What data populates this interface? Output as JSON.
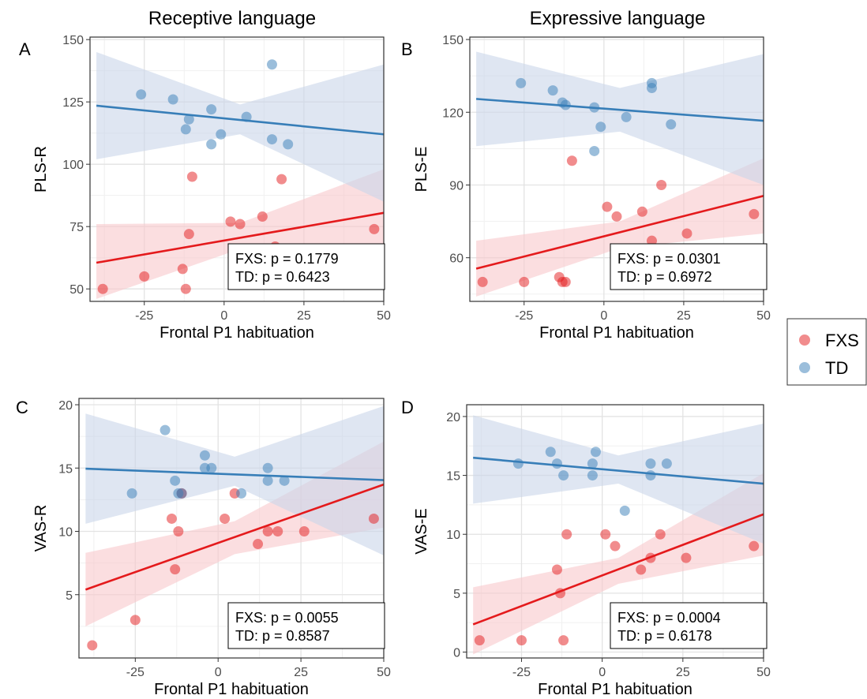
{
  "column_titles": [
    "Receptive language",
    "Expressive language"
  ],
  "legend": {
    "entries": [
      {
        "label": "FXS",
        "color": "#E41A1C"
      },
      {
        "label": "TD",
        "color": "#377EB8"
      }
    ]
  },
  "colors": {
    "FXS": "#E41A1C",
    "TD": "#377EB8",
    "FXS_band": "#F8C8CB",
    "TD_band": "#C9D6EA"
  },
  "chart_data": [
    {
      "type": "scatter",
      "panel_letter": "A",
      "column_title": "Receptive language",
      "xlabel": "Frontal P1 habituation",
      "ylabel": "PLS-R",
      "xlim": [
        -42,
        50
      ],
      "ylim": [
        45,
        151
      ],
      "xticks": [
        -25,
        0,
        25,
        50
      ],
      "xtick_labels": [
        "-25",
        "0",
        "25",
        "50"
      ],
      "yticks": [
        50,
        75,
        100,
        125,
        150
      ],
      "ytick_labels": [
        "50",
        "75",
        "100",
        "125",
        "150"
      ],
      "grid": true,
      "annotation": [
        "FXS: p = 0.1779",
        "TD:   p = 0.6423"
      ],
      "series": [
        {
          "name": "FXS",
          "points": [
            [
              -38,
              50
            ],
            [
              -25,
              55
            ],
            [
              -13,
              58
            ],
            [
              -12,
              50
            ],
            [
              -11,
              72
            ],
            [
              -10,
              95
            ],
            [
              2,
              77
            ],
            [
              5,
              76
            ],
            [
              12,
              79
            ],
            [
              16,
              67
            ],
            [
              18,
              94
            ],
            [
              47,
              74
            ]
          ],
          "fit": {
            "x": [
              -40,
              50
            ],
            "y": [
              60.5,
              80.5
            ]
          },
          "band": {
            "x": [
              -40,
              5,
              50
            ],
            "lower": [
              46,
              66,
              64
            ],
            "upper": [
              76,
              76.5,
              98
            ]
          }
        },
        {
          "name": "TD",
          "points": [
            [
              -26,
              128
            ],
            [
              -16,
              126
            ],
            [
              -12,
              114
            ],
            [
              -11,
              118
            ],
            [
              -4,
              122
            ],
            [
              -4,
              108
            ],
            [
              -1,
              112
            ],
            [
              7,
              119
            ],
            [
              15,
              140
            ],
            [
              15,
              110
            ],
            [
              20,
              108
            ]
          ],
          "fit": {
            "x": [
              -40,
              50
            ],
            "y": [
              123.5,
              112
            ]
          },
          "band": {
            "x": [
              -40,
              5,
              50
            ],
            "lower": [
              102,
              112,
              85
            ],
            "upper": [
              145,
              124,
              140
            ]
          }
        }
      ]
    },
    {
      "type": "scatter",
      "panel_letter": "B",
      "column_title": "Expressive language",
      "xlabel": "Frontal P1 habituation",
      "ylabel": "PLS-E",
      "xlim": [
        -42,
        50
      ],
      "ylim": [
        42,
        151
      ],
      "xticks": [
        -25,
        0,
        25,
        50
      ],
      "xtick_labels": [
        "-25",
        "0",
        "25",
        "50"
      ],
      "yticks": [
        60,
        90,
        120,
        150
      ],
      "ytick_labels": [
        "60",
        "90",
        "120",
        "150"
      ],
      "grid": true,
      "annotation": [
        "FXS: p = 0.0301",
        "TD:   p = 0.6972"
      ],
      "series": [
        {
          "name": "FXS",
          "points": [
            [
              -38,
              50
            ],
            [
              -25,
              50
            ],
            [
              -14,
              52
            ],
            [
              -13,
              50
            ],
            [
              -12,
              50
            ],
            [
              -10,
              100
            ],
            [
              1,
              81
            ],
            [
              4,
              77
            ],
            [
              12,
              79
            ],
            [
              15,
              67
            ],
            [
              18,
              90
            ],
            [
              26,
              70
            ],
            [
              47,
              78
            ]
          ],
          "fit": {
            "x": [
              -40,
              50
            ],
            "y": [
              55.5,
              85.5
            ]
          },
          "band": {
            "x": [
              -40,
              5,
              50
            ],
            "lower": [
              44,
              64,
              70
            ],
            "upper": [
              67,
              75,
              101
            ]
          }
        },
        {
          "name": "TD",
          "points": [
            [
              -26,
              132
            ],
            [
              -16,
              129
            ],
            [
              -13,
              124
            ],
            [
              -12,
              123
            ],
            [
              -3,
              122
            ],
            [
              -3,
              104
            ],
            [
              -1,
              114
            ],
            [
              7,
              118
            ],
            [
              15,
              132
            ],
            [
              15,
              130
            ],
            [
              21,
              115
            ]
          ],
          "fit": {
            "x": [
              -40,
              50
            ],
            "y": [
              125.5,
              116.5
            ]
          },
          "band": {
            "x": [
              -40,
              5,
              50
            ],
            "lower": [
              106,
              112,
              90
            ],
            "upper": [
              145,
              130,
              144
            ]
          }
        }
      ]
    },
    {
      "type": "scatter",
      "panel_letter": "C",
      "xlabel": "Frontal P1 habituation",
      "ylabel": "VAS-R",
      "xlim": [
        -42,
        50
      ],
      "ylim": [
        0,
        20.5
      ],
      "xticks": [
        -25,
        0,
        25,
        50
      ],
      "xtick_labels": [
        "-25",
        "0",
        "25",
        "50"
      ],
      "yticks": [
        5,
        10,
        15,
        20
      ],
      "ytick_labels": [
        "5",
        "10",
        "15",
        "20"
      ],
      "grid": true,
      "annotation": [
        "FXS: p = 0.0055",
        "TD:   p = 0.8587"
      ],
      "series": [
        {
          "name": "FXS",
          "points": [
            [
              -38,
              1
            ],
            [
              -25,
              3
            ],
            [
              -14,
              11
            ],
            [
              -13,
              7
            ],
            [
              -12,
              10
            ],
            [
              -11,
              13
            ],
            [
              2,
              11
            ],
            [
              5,
              13
            ],
            [
              12,
              9
            ],
            [
              15,
              10
            ],
            [
              18,
              10
            ],
            [
              26,
              10
            ],
            [
              47,
              11
            ]
          ],
          "fit": {
            "x": [
              -40,
              50
            ],
            "y": [
              5.4,
              13.7
            ]
          },
          "band": {
            "x": [
              -40,
              5,
              50
            ],
            "lower": [
              2.5,
              8.2,
              10.3
            ],
            "upper": [
              8.3,
              10.8,
              17.1
            ]
          }
        },
        {
          "name": "TD",
          "points": [
            [
              -26,
              13
            ],
            [
              -16,
              18
            ],
            [
              -13,
              14
            ],
            [
              -12,
              13
            ],
            [
              -11,
              13
            ],
            [
              -4,
              16
            ],
            [
              -4,
              15
            ],
            [
              -2,
              15
            ],
            [
              7,
              13
            ],
            [
              15,
              15
            ],
            [
              15,
              14
            ],
            [
              20,
              14
            ]
          ],
          "fit": {
            "x": [
              -40,
              50
            ],
            "y": [
              14.95,
              14.05
            ]
          },
          "band": {
            "x": [
              -40,
              5,
              50
            ],
            "lower": [
              10.6,
              13.6,
              8.1
            ],
            "upper": [
              19.3,
              15.9,
              19.9
            ]
          }
        }
      ]
    },
    {
      "type": "scatter",
      "panel_letter": "D",
      "xlabel": "Frontal P1 habituation",
      "ylabel": "VAS-E",
      "xlim": [
        -42,
        50
      ],
      "ylim": [
        -0.5,
        21
      ],
      "xticks": [
        -25,
        0,
        25,
        50
      ],
      "xtick_labels": [
        "-25",
        "0",
        "25",
        "50"
      ],
      "yticks": [
        0,
        5,
        10,
        15,
        20
      ],
      "ytick_labels": [
        "0",
        "5",
        "10",
        "15",
        "20"
      ],
      "grid": true,
      "annotation": [
        "FXS: p = 0.0004",
        "TD:   p = 0.6178"
      ],
      "series": [
        {
          "name": "FXS",
          "points": [
            [
              -38,
              1
            ],
            [
              -25,
              1
            ],
            [
              -14,
              7
            ],
            [
              -13,
              5
            ],
            [
              -12,
              1
            ],
            [
              -11,
              10
            ],
            [
              1,
              10
            ],
            [
              4,
              9
            ],
            [
              12,
              7
            ],
            [
              15,
              8
            ],
            [
              18,
              10
            ],
            [
              26,
              8
            ],
            [
              47,
              9
            ]
          ],
          "fit": {
            "x": [
              -40,
              50
            ],
            "y": [
              2.35,
              11.7
            ]
          },
          "band": {
            "x": [
              -40,
              5,
              50
            ],
            "lower": [
              -0.2,
              5.8,
              8.2
            ],
            "upper": [
              5.5,
              8.0,
              15.2
            ]
          }
        },
        {
          "name": "TD",
          "points": [
            [
              -26,
              16
            ],
            [
              -16,
              17
            ],
            [
              -14,
              16
            ],
            [
              -12,
              15
            ],
            [
              -3,
              16
            ],
            [
              -3,
              15
            ],
            [
              -2,
              17
            ],
            [
              7,
              12
            ],
            [
              15,
              16
            ],
            [
              15,
              15
            ],
            [
              20,
              16
            ]
          ],
          "fit": {
            "x": [
              -40,
              50
            ],
            "y": [
              16.5,
              14.3
            ]
          },
          "band": {
            "x": [
              -40,
              5,
              50
            ],
            "lower": [
              12.6,
              14.3,
              9.2
            ],
            "upper": [
              20.1,
              16.7,
              19.4
            ]
          }
        }
      ]
    }
  ]
}
